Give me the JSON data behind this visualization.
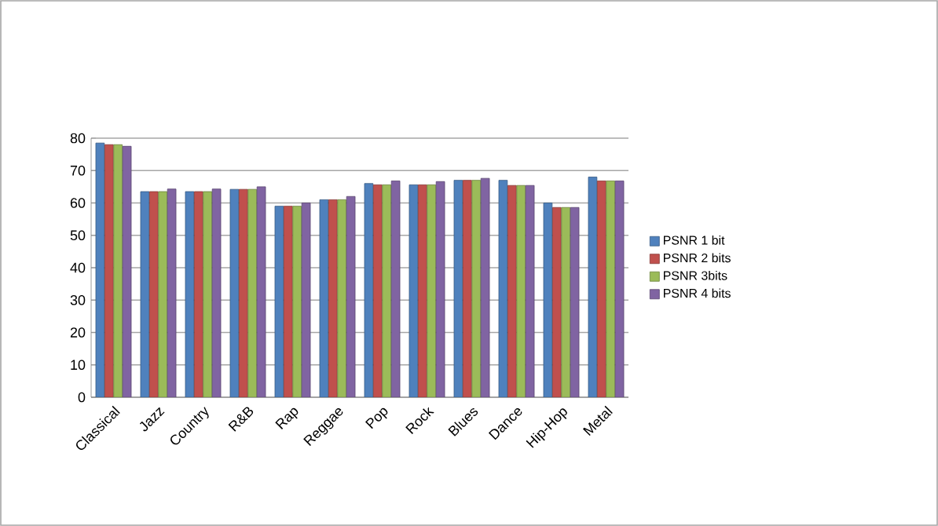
{
  "chart_data": {
    "type": "bar",
    "categories": [
      "Classical",
      "Jazz",
      "Country",
      "R&B",
      "Rap",
      "Reggae",
      "Pop",
      "Rock",
      "Blues",
      "Dance",
      "Hip-Hop",
      "Metal"
    ],
    "series": [
      {
        "name": "PSNR 1 bit",
        "color": "#4f81bd",
        "values": [
          78.5,
          63.5,
          63.5,
          64.2,
          59,
          61,
          66,
          65.6,
          67,
          67,
          60,
          68
        ]
      },
      {
        "name": "PSNR 2 bits",
        "color": "#c0504d",
        "values": [
          78,
          63.5,
          63.5,
          64.2,
          59,
          61,
          65.6,
          65.6,
          67,
          65.4,
          58.6,
          66.8
        ]
      },
      {
        "name": "PSNR 3bits",
        "color": "#9bbb59",
        "values": [
          78,
          63.5,
          63.5,
          64.2,
          59,
          61,
          65.6,
          65.6,
          67,
          65.4,
          58.6,
          66.8
        ]
      },
      {
        "name": "PSNR 4 bits",
        "color": "#8064a2",
        "values": [
          77.5,
          64.3,
          64.3,
          65,
          60,
          62,
          66.8,
          66.6,
          67.6,
          65.4,
          58.6,
          66.8
        ]
      }
    ],
    "ylim": [
      0,
      80
    ],
    "yticks": [
      0,
      10,
      20,
      30,
      40,
      50,
      60,
      70,
      80
    ],
    "grid": "y",
    "legend": "right"
  }
}
